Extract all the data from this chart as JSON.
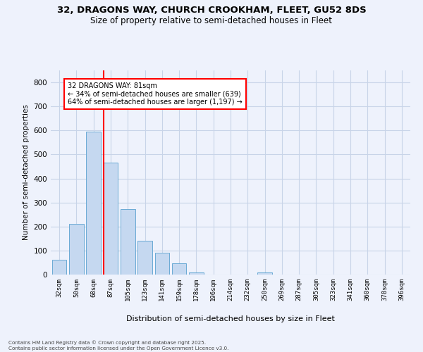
{
  "title_line1": "32, DRAGONS WAY, CHURCH CROOKHAM, FLEET, GU52 8DS",
  "title_line2": "Size of property relative to semi-detached houses in Fleet",
  "xlabel": "Distribution of semi-detached houses by size in Fleet",
  "ylabel": "Number of semi-detached properties",
  "categories": [
    "32sqm",
    "50sqm",
    "68sqm",
    "87sqm",
    "105sqm",
    "123sqm",
    "141sqm",
    "159sqm",
    "178sqm",
    "196sqm",
    "214sqm",
    "232sqm",
    "250sqm",
    "269sqm",
    "287sqm",
    "305sqm",
    "323sqm",
    "341sqm",
    "360sqm",
    "378sqm",
    "396sqm"
  ],
  "values": [
    62,
    210,
    595,
    465,
    272,
    140,
    90,
    48,
    10,
    0,
    0,
    0,
    8,
    0,
    0,
    0,
    0,
    0,
    0,
    0,
    0
  ],
  "bar_color": "#c5d8f0",
  "bar_edge_color": "#6aaad4",
  "vline_color": "red",
  "vline_xindex": 2.57,
  "ylim": [
    0,
    850
  ],
  "yticks": [
    0,
    100,
    200,
    300,
    400,
    500,
    600,
    700,
    800
  ],
  "annotation_title": "32 DRAGONS WAY: 81sqm",
  "annotation_line1": "← 34% of semi-detached houses are smaller (639)",
  "annotation_line2": "64% of semi-detached houses are larger (1,197) →",
  "annotation_box_facecolor": "#ffffff",
  "annotation_box_edgecolor": "red",
  "footer_line1": "Contains HM Land Registry data © Crown copyright and database right 2025.",
  "footer_line2": "Contains public sector information licensed under the Open Government Licence v3.0.",
  "background_color": "#eef2fc",
  "grid_color": "#c8d4e8"
}
